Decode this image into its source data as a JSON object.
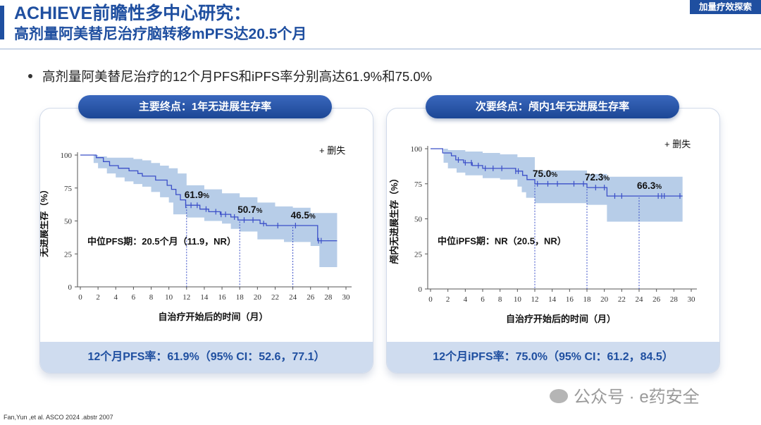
{
  "header": {
    "title": "ACHIEVE前瞻性多中心研究：",
    "subtitle": "高剂量阿美替尼治疗脑转移mPFS达20.5个月",
    "tag": "加量疗效探索"
  },
  "bullet": "高剂量阿美替尼治疗的12个月PFS和iPFS率分别高达61.9%和75.0%",
  "colors": {
    "brand": "#1f4fa0",
    "curve": "#3b4fc8",
    "band": "#b7cde8",
    "pill": "#2c58ad",
    "footer_bg": "#cfdcef"
  },
  "panels": [
    {
      "pill_label": "主要终点：1年无进展生存率",
      "footer": "12个月PFS率：61.9%（95% CI：52.6，77.1）",
      "median_note": "中位PFS期：20.5个月（11.9，NR）",
      "legend": "删失",
      "chart": {
        "type": "line",
        "ylabel": "无进展生存（%）",
        "xlabel": "自治疗开始后的时间（月）",
        "x_ticks": [
          0,
          2,
          4,
          6,
          8,
          10,
          12,
          14,
          16,
          18,
          20,
          22,
          24,
          26,
          28,
          30
        ],
        "y_ticks": [
          0,
          25,
          50,
          75,
          100
        ],
        "xlim": [
          0,
          30
        ],
        "ylim": [
          0,
          100
        ],
        "annotations": [
          {
            "x": 12,
            "y": 61.9,
            "num": "61.9",
            "pct": "%"
          },
          {
            "x": 18,
            "y": 50.7,
            "num": "50.7",
            "pct": "%"
          },
          {
            "x": 24,
            "y": 46.5,
            "num": "46.5",
            "pct": "%"
          }
        ],
        "steps": [
          [
            0,
            100
          ],
          [
            1.8,
            100
          ],
          [
            1.8,
            98
          ],
          [
            2.6,
            98
          ],
          [
            2.6,
            95
          ],
          [
            3.3,
            95
          ],
          [
            3.3,
            92
          ],
          [
            4.3,
            92
          ],
          [
            4.3,
            90
          ],
          [
            5.5,
            90
          ],
          [
            5.5,
            88
          ],
          [
            6.5,
            88
          ],
          [
            6.5,
            86
          ],
          [
            7,
            86
          ],
          [
            7,
            84
          ],
          [
            8.5,
            84
          ],
          [
            8.5,
            81
          ],
          [
            9.8,
            81
          ],
          [
            9.8,
            77
          ],
          [
            10.3,
            77
          ],
          [
            10.3,
            74
          ],
          [
            10.8,
            74
          ],
          [
            10.8,
            70
          ],
          [
            11.3,
            70
          ],
          [
            11.3,
            66
          ],
          [
            11.9,
            66
          ],
          [
            11.9,
            61.9
          ],
          [
            13.5,
            61.9
          ],
          [
            13.5,
            59
          ],
          [
            14.5,
            59
          ],
          [
            14.5,
            57
          ],
          [
            15.8,
            57
          ],
          [
            15.8,
            55
          ],
          [
            17,
            55
          ],
          [
            17,
            53
          ],
          [
            17.8,
            53
          ],
          [
            17.8,
            50.7
          ],
          [
            20.3,
            50.7
          ],
          [
            20.3,
            48
          ],
          [
            21,
            48
          ],
          [
            21,
            46.5
          ],
          [
            26.8,
            46.5
          ],
          [
            26.8,
            35
          ],
          [
            29,
            35
          ]
        ],
        "upper": [
          [
            0,
            100
          ],
          [
            2,
            100
          ],
          [
            2,
            99
          ],
          [
            3,
            99
          ],
          [
            3,
            98
          ],
          [
            6,
            98
          ],
          [
            6,
            97
          ],
          [
            7,
            97
          ],
          [
            7,
            96
          ],
          [
            8,
            96
          ],
          [
            8,
            94
          ],
          [
            9,
            94
          ],
          [
            9,
            92
          ],
          [
            10,
            92
          ],
          [
            10,
            90
          ],
          [
            11,
            90
          ],
          [
            11,
            86
          ],
          [
            12,
            86
          ],
          [
            12,
            77.1
          ],
          [
            14,
            77.1
          ],
          [
            14,
            74
          ],
          [
            16,
            74
          ],
          [
            16,
            71
          ],
          [
            18,
            71
          ],
          [
            18,
            68
          ],
          [
            20,
            68
          ],
          [
            20,
            64
          ],
          [
            22,
            64
          ],
          [
            22,
            61
          ],
          [
            24,
            61
          ],
          [
            24,
            60
          ],
          [
            26,
            60
          ],
          [
            26,
            56
          ],
          [
            29,
            56
          ]
        ],
        "lower": [
          [
            0,
            100
          ],
          [
            1.5,
            100
          ],
          [
            1.5,
            94
          ],
          [
            2,
            94
          ],
          [
            2,
            90
          ],
          [
            3,
            90
          ],
          [
            3,
            86
          ],
          [
            4,
            86
          ],
          [
            4,
            83
          ],
          [
            5,
            83
          ],
          [
            5,
            80
          ],
          [
            6,
            80
          ],
          [
            6,
            78
          ],
          [
            7,
            78
          ],
          [
            7,
            76
          ],
          [
            8,
            76
          ],
          [
            8,
            72
          ],
          [
            9,
            72
          ],
          [
            9,
            68
          ],
          [
            10,
            68
          ],
          [
            10,
            64
          ],
          [
            10.5,
            64
          ],
          [
            10.5,
            55
          ],
          [
            12,
            55
          ],
          [
            12,
            52.6
          ],
          [
            14,
            52.6
          ],
          [
            14,
            50
          ],
          [
            16,
            50
          ],
          [
            16,
            48
          ],
          [
            17,
            48
          ],
          [
            17,
            44
          ],
          [
            18,
            44
          ],
          [
            18,
            42
          ],
          [
            20,
            42
          ],
          [
            20,
            36
          ],
          [
            23,
            36
          ],
          [
            23,
            34
          ],
          [
            26,
            34
          ],
          [
            26,
            31
          ],
          [
            27,
            31
          ],
          [
            27,
            15
          ],
          [
            29,
            15
          ]
        ],
        "censor_x": [
          11.9,
          12.5,
          13.2,
          14.2,
          15.3,
          15.9,
          16.4,
          17.4,
          18.5,
          19.5,
          20.7,
          22.3,
          24.3,
          26.9,
          27.2
        ]
      }
    },
    {
      "pill_label": "次要终点：颅内1年无进展生存率",
      "footer": "12个月iPFS率：75.0%（95% CI：61.2，84.5）",
      "median_note": "中位iPFS期：NR（20.5，NR）",
      "legend": "删失",
      "chart": {
        "type": "line",
        "ylabel": "颅内无进展生存（%）",
        "xlabel": "自治疗开始后的时间（月）",
        "x_ticks": [
          0,
          2,
          4,
          6,
          8,
          10,
          12,
          14,
          16,
          18,
          20,
          22,
          24,
          26,
          28,
          30
        ],
        "y_ticks": [
          0,
          25,
          50,
          75,
          100
        ],
        "xlim": [
          0,
          30
        ],
        "ylim": [
          0,
          100
        ],
        "annotations": [
          {
            "x": 12,
            "y": 75.0,
            "num": "75.0",
            "pct": "%"
          },
          {
            "x": 18,
            "y": 72.3,
            "num": "72.3",
            "pct": "%"
          },
          {
            "x": 24,
            "y": 66.3,
            "num": "66.3",
            "pct": "%"
          }
        ],
        "steps": [
          [
            0,
            100
          ],
          [
            1.4,
            100
          ],
          [
            1.4,
            97
          ],
          [
            2.4,
            97
          ],
          [
            2.4,
            95
          ],
          [
            2.9,
            95
          ],
          [
            2.9,
            92
          ],
          [
            3.8,
            92
          ],
          [
            3.8,
            90
          ],
          [
            4.8,
            90
          ],
          [
            4.8,
            88
          ],
          [
            6,
            88
          ],
          [
            6,
            86
          ],
          [
            9.8,
            86
          ],
          [
            9.8,
            84
          ],
          [
            10.6,
            84
          ],
          [
            10.6,
            81
          ],
          [
            11.1,
            81
          ],
          [
            11.1,
            78
          ],
          [
            12,
            78
          ],
          [
            12,
            75
          ],
          [
            18,
            75
          ],
          [
            18,
            72.3
          ],
          [
            20.3,
            72.3
          ],
          [
            20.3,
            66.3
          ],
          [
            29,
            66.3
          ]
        ],
        "upper": [
          [
            0,
            100
          ],
          [
            2,
            100
          ],
          [
            2,
            99
          ],
          [
            4,
            99
          ],
          [
            4,
            98
          ],
          [
            6,
            98
          ],
          [
            6,
            97
          ],
          [
            8,
            97
          ],
          [
            8,
            96
          ],
          [
            10,
            96
          ],
          [
            10,
            94
          ],
          [
            12,
            94
          ],
          [
            12,
            84.5
          ],
          [
            18,
            84.5
          ],
          [
            18,
            82
          ],
          [
            20.3,
            82
          ],
          [
            20.3,
            80
          ],
          [
            29,
            80
          ]
        ],
        "lower": [
          [
            0,
            100
          ],
          [
            1.5,
            100
          ],
          [
            1.5,
            90
          ],
          [
            2,
            90
          ],
          [
            2,
            86
          ],
          [
            3,
            86
          ],
          [
            3,
            83
          ],
          [
            4,
            83
          ],
          [
            4,
            81
          ],
          [
            6,
            81
          ],
          [
            6,
            79
          ],
          [
            8,
            79
          ],
          [
            8,
            78
          ],
          [
            10,
            78
          ],
          [
            10,
            73
          ],
          [
            10.5,
            73
          ],
          [
            10.5,
            69
          ],
          [
            11,
            69
          ],
          [
            11,
            65
          ],
          [
            12,
            65
          ],
          [
            12,
            61.2
          ],
          [
            18,
            61.2
          ],
          [
            18,
            60
          ],
          [
            20.3,
            60
          ],
          [
            20.3,
            48
          ],
          [
            29,
            48
          ]
        ],
        "censor_x": [
          3.2,
          4.0,
          4.7,
          5.5,
          6.3,
          7.2,
          8.2,
          9.8,
          10.1,
          12.3,
          13.5,
          14.6,
          16.5,
          17.6,
          19.0,
          20.0,
          21.2,
          22.0,
          26.2,
          26.6,
          26.9,
          28.7
        ]
      }
    }
  ],
  "reference": "Fan,Yun ,et al. ASCO 2024 .abstr 2007",
  "watermark": "公众号 · e药安全"
}
